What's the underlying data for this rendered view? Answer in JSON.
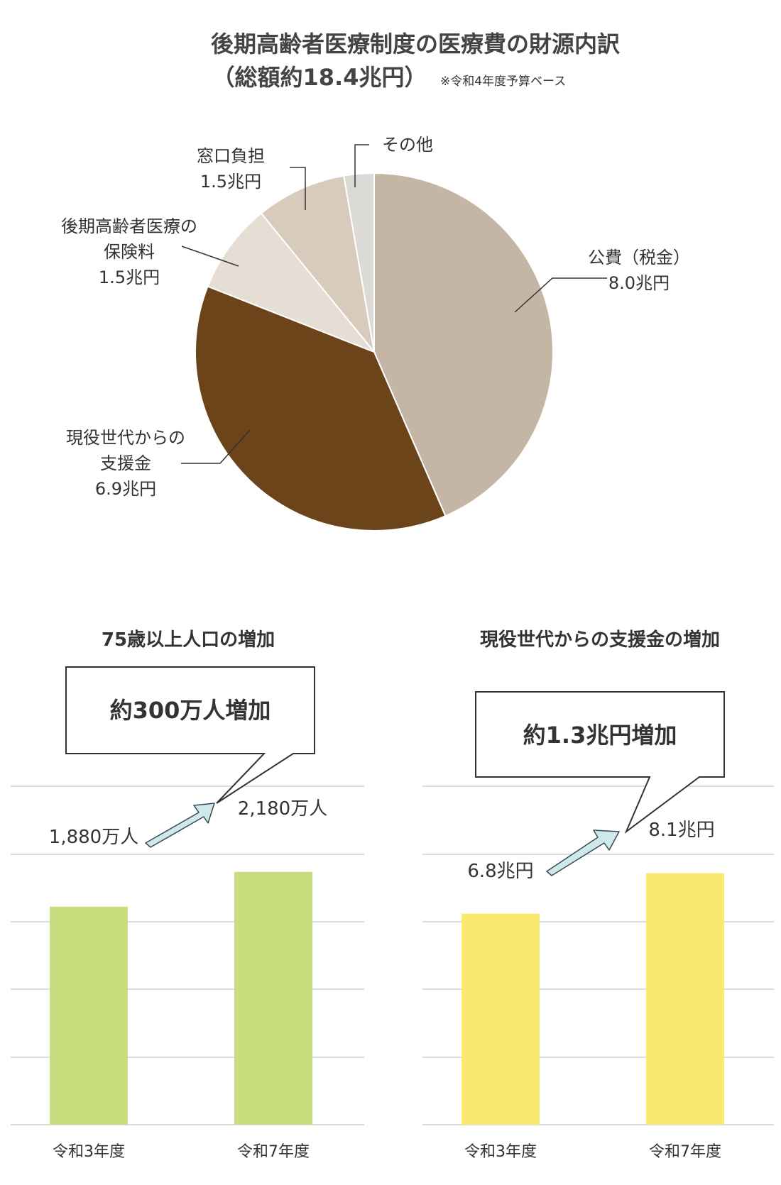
{
  "chart_data": [
    {
      "type": "pie",
      "title_line1": "後期高齢者医療制度の医療費の財源内訳",
      "title_line2": "（総額約18.4兆円）",
      "note": "※令和4年度予算ベース",
      "slices": [
        {
          "id": "kouhi",
          "lines": [
            "公費（税金）",
            "8.0兆円"
          ],
          "value": 8.0,
          "color": "#c4b5a5"
        },
        {
          "id": "shienkin",
          "lines": [
            "現役世代からの",
            "支援金",
            "6.9兆円"
          ],
          "value": 6.9,
          "color": "#6b4419"
        },
        {
          "id": "hokenryo",
          "lines": [
            "後期高齢者医療の",
            "保険料",
            "1.5兆円"
          ],
          "value": 1.5,
          "color": "#e6ded5"
        },
        {
          "id": "madoguchi",
          "lines": [
            "窓口負担",
            "1.5兆円"
          ],
          "value": 1.5,
          "color": "#d9cbbb"
        },
        {
          "id": "sonota",
          "lines": [
            "その他"
          ],
          "value": 0.5,
          "color": "#dcdad6"
        }
      ]
    },
    {
      "type": "bar",
      "title": "75歳以上人口の増加",
      "callout": "約300万人増加",
      "categories": [
        "令和3年度",
        "令和7年度"
      ],
      "values": [
        1880,
        2180
      ],
      "value_labels": [
        "1,880万人",
        "2,180万人"
      ],
      "unit": "万人",
      "color": "#c8dd7d"
    },
    {
      "type": "bar",
      "title": "現役世代からの支援金の増加",
      "callout": "約1.3兆円増加",
      "categories": [
        "令和3年度",
        "令和7年度"
      ],
      "values": [
        6.8,
        8.1
      ],
      "value_labels": [
        "6.8兆円",
        "8.1兆円"
      ],
      "unit": "兆円",
      "color": "#f9e872"
    }
  ],
  "colors": {
    "arrow_fill": "#cfe8ea",
    "arrow_stroke": "#3a4a55",
    "grid": "#c8c8c8",
    "leader": "#333333"
  }
}
